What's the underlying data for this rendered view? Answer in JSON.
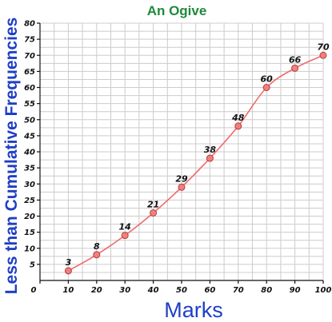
{
  "chart_data": {
    "type": "line",
    "title": "An Ogive",
    "xlabel": "Marks",
    "ylabel": "Less than Cumulative Frequencies",
    "x": [
      10,
      20,
      30,
      40,
      50,
      60,
      70,
      80,
      90,
      100
    ],
    "series": [
      {
        "values": [
          3,
          8,
          14,
          21,
          29,
          38,
          48,
          60,
          66,
          70
        ]
      }
    ],
    "data_labels": [
      "3",
      "8",
      "14",
      "21",
      "29",
      "38",
      "48",
      "60",
      "66",
      "70"
    ],
    "xlim": [
      0,
      100
    ],
    "ylim": [
      0,
      80
    ],
    "x_ticks": [
      "0",
      "10",
      "20",
      "30",
      "40",
      "50",
      "60",
      "70",
      "80",
      "90",
      "100"
    ],
    "y_ticks": [
      "5",
      "10",
      "15",
      "20",
      "25",
      "30",
      "35",
      "40",
      "45",
      "50",
      "55",
      "60",
      "65",
      "70",
      "75",
      "80"
    ],
    "grid": true,
    "colors": {
      "title": "#1e8a3a",
      "axis_labels": "#1f3fc6",
      "line": "#f06a6a",
      "marker_fill": "#f08080",
      "marker_edge": "#b73a3a",
      "grid": "#cccccc"
    }
  }
}
